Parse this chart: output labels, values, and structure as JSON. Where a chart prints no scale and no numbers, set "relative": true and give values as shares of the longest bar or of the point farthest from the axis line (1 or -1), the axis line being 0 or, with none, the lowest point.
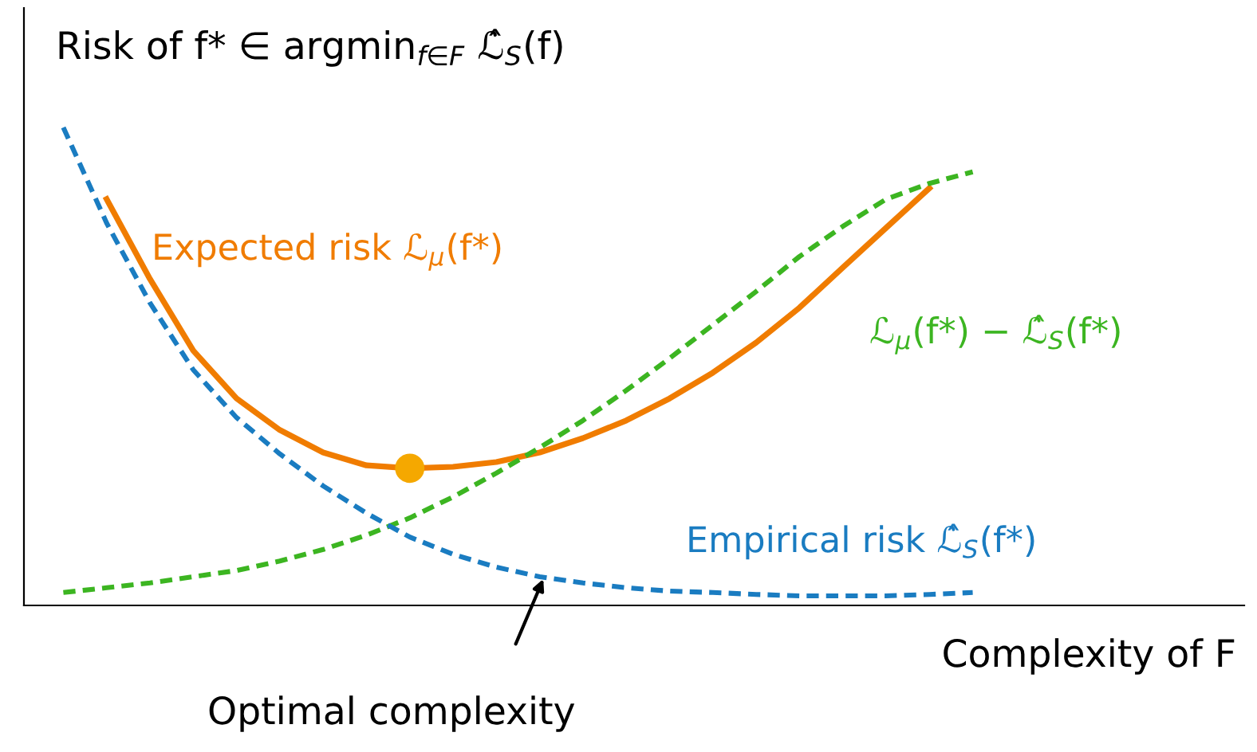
{
  "chart_data": {
    "type": "line",
    "relative": true,
    "ylabel": "Risk of f* ∈ argmin$_{f∈F}$ ℒ̂$_{S}$(f)",
    "xlabel": "Complexity of F",
    "annotations": [
      "Optimal complexity"
    ],
    "legend": false,
    "categories": [
      null,
      null,
      null,
      null,
      null,
      null,
      null,
      null,
      null,
      null,
      null,
      null,
      null,
      null,
      null,
      null,
      null,
      null,
      null,
      null,
      null,
      null
    ],
    "series": [
      {
        "name": "Expected risk ℒ$_{μ}$(f*)",
        "color": "#f07c00",
        "line_style": "solid",
        "marker": "none",
        "values": [
          null,
          0.85,
          0.683,
          0.533,
          0.433,
          0.367,
          0.32,
          0.293,
          0.287,
          0.29,
          0.3,
          0.32,
          0.35,
          0.387,
          0.433,
          0.487,
          0.55,
          0.623,
          0.707,
          0.79,
          0.873,
          null
        ]
      },
      {
        "name": "ℒ$_{μ}$(f*) − ℒ̂$_{S}$(f*)",
        "color": "#3cb521",
        "line_style": "dashed",
        "marker": "none",
        "values": [
          0.027,
          0.037,
          0.047,
          0.06,
          0.073,
          0.093,
          0.117,
          0.147,
          0.183,
          0.227,
          0.277,
          0.33,
          0.387,
          0.45,
          0.517,
          0.587,
          0.657,
          0.73,
          0.793,
          0.85,
          0.883,
          0.907
        ]
      },
      {
        "name": "Empirical risk ℒ̂$_{S}$(f*)",
        "color": "#1a7cc1",
        "line_style": "dashed",
        "marker": "none",
        "values": [
          1,
          0.8,
          0.633,
          0.493,
          0.393,
          0.317,
          0.25,
          0.193,
          0.143,
          0.107,
          0.08,
          0.06,
          0.047,
          0.037,
          0.03,
          0.027,
          0.023,
          0.02,
          0.02,
          0.02,
          0.023,
          0.027
        ]
      }
    ]
  }
}
